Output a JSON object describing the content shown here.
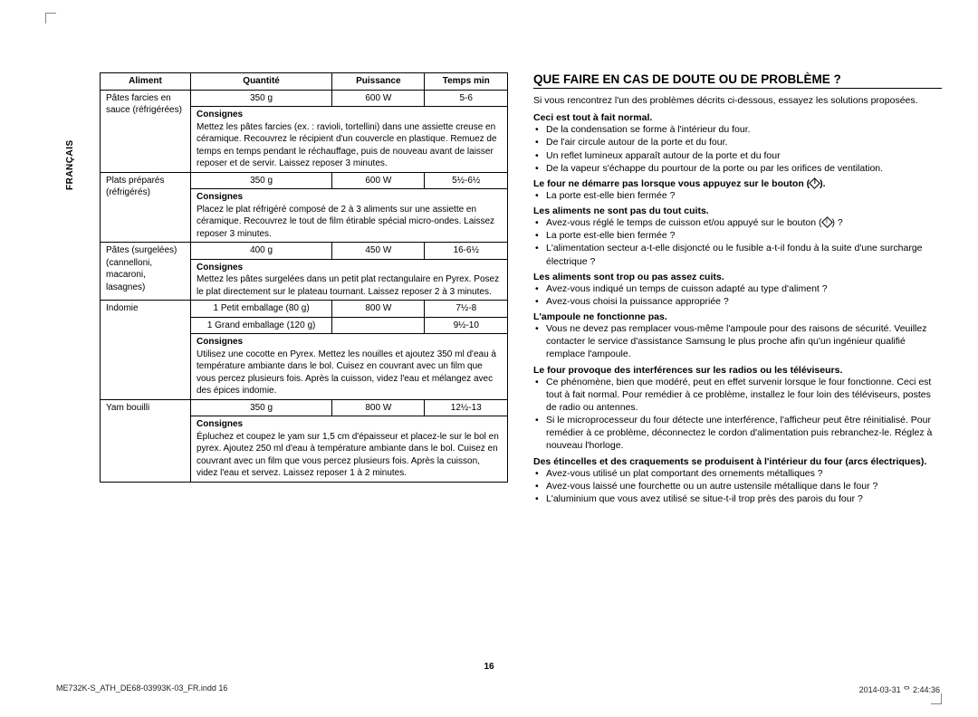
{
  "lang_label": "FRANÇAIS",
  "page_number": "16",
  "footer_left": "ME732K-S_ATH_DE68-03993K-03_FR.indd   16",
  "footer_right": "2014-03-31   ᄋ 2:44:36",
  "table": {
    "headers": [
      "Aliment",
      "Quantité",
      "Puissance",
      "Temps min"
    ],
    "rows": [
      {
        "food": "Pâtes farcies en sauce (réfrigérées)",
        "qty": "350 g",
        "power": "600 W",
        "time": "5-6",
        "consignes_label": "Consignes",
        "consignes": "Mettez les pâtes farcies (ex. : ravioli, tortellini) dans une assiette creuse en céramique. Recouvrez le récipient d'un couvercle en plastique. Remuez de temps en temps pendant le réchauffage, puis de nouveau avant de laisser reposer et de servir. Laissez reposer 3 minutes."
      },
      {
        "food": "Plats préparés (réfrigérés)",
        "qty": "350 g",
        "power": "600 W",
        "time": "5½-6½",
        "consignes_label": "Consignes",
        "consignes": "Placez le plat réfrigéré composé de 2 à 3 aliments sur une assiette en céramique. Recouvrez le tout de film étirable spécial micro-ondes. Laissez reposer 3 minutes."
      },
      {
        "food": "Pâtes (surgelées) (cannelloni, macaroni, lasagnes)",
        "qty": "400 g",
        "power": "450 W",
        "time": "16-6½",
        "consignes_label": "Consignes",
        "consignes": "Mettez les pâtes surgelées dans un petit plat rectangulaire en Pyrex. Posez le plat directement sur le plateau tournant. Laissez reposer 2 à 3 minutes."
      },
      {
        "food": "Indomie",
        "qty1": "1 Petit emballage (80 g)",
        "power1": "800 W",
        "time1": "7½-8",
        "qty2": "1 Grand emballage (120 g)",
        "time2": "9½-10",
        "consignes_label": "Consignes",
        "consignes": "Utilisez une cocotte en Pyrex. Mettez les nouilles et ajoutez 350 ml d'eau à température ambiante dans le bol. Cuisez en couvrant avec un film que vous percez plusieurs fois. Après la cuisson, videz l'eau et mélangez avec des épices indomie."
      },
      {
        "food": "Yam bouilli",
        "qty": "350 g",
        "power": "800 W",
        "time": "12½-13",
        "consignes_label": "Consignes",
        "consignes": "Épluchez et coupez le yam sur 1,5 cm d'épaisseur et placez-le sur le bol en pyrex. Ajoutez 250 ml d'eau à température ambiante dans le bol. Cuisez en couvrant avec un film que vous percez plusieurs fois. Après la cuisson, videz l'eau et servez. Laissez reposer 1 à 2 minutes."
      }
    ]
  },
  "right": {
    "heading": "QUE FAIRE EN CAS DE DOUTE OU DE PROBLÈME ?",
    "intro": "Si vous rencontrez l'un des problèmes décrits ci-dessous, essayez les solutions proposées.",
    "sections": [
      {
        "title": "Ceci est tout à fait normal.",
        "items": [
          "De la condensation se forme à l'intérieur du four.",
          "De l'air circule autour de la porte et du four.",
          "Un reflet lumineux apparaît autour de la porte et du four",
          "De la vapeur s'échappe du pourtour de la porte ou par les orifices de ventilation."
        ]
      },
      {
        "title": "Le four ne démarre pas lorsque vous appuyez sur le bouton (",
        "title_after": ").",
        "items": [
          "La porte est-elle bien fermée ?"
        ]
      },
      {
        "title": "Les aliments ne sont pas du tout cuits.",
        "items": [
          "Avez-vous réglé le temps de cuisson et/ou appuyé sur le bouton ( ) ?",
          "La porte est-elle bien fermée ?",
          "L'alimentation secteur a-t-elle disjoncté ou le fusible a-t-il fondu à la suite d'une surcharge électrique ?"
        ]
      },
      {
        "title": "Les aliments sont trop ou pas assez cuits.",
        "items": [
          "Avez-vous indiqué un temps de cuisson adapté au type d'aliment ?",
          "Avez-vous choisi la puissance appropriée ?"
        ]
      },
      {
        "title": "L'ampoule ne fonctionne pas.",
        "items": [
          "Vous ne devez pas remplacer vous-même l'ampoule pour des raisons de sécurité. Veuillez contacter le service d'assistance Samsung le plus proche afin qu'un ingénieur qualifié remplace l'ampoule."
        ]
      },
      {
        "title": "Le four provoque des interférences sur les radios ou les téléviseurs.",
        "items": [
          "Ce phénomène, bien que modéré, peut en effet survenir lorsque le four fonctionne. Ceci est tout à fait normal. Pour remédier à ce problème, installez le four loin des téléviseurs, postes de radio ou antennes.",
          "Si le microprocesseur du four détecte une interférence, l'afficheur peut être réinitialisé. Pour remédier à ce problème, déconnectez le cordon d'alimentation puis rebranchez-le. Réglez à nouveau l'horloge."
        ]
      },
      {
        "title": "Des étincelles et des craquements se produisent à l'intérieur du four (arcs électriques).",
        "items": [
          "Avez-vous utilisé un plat comportant des ornements métalliques ?",
          "Avez-vous laissé une fourchette ou un autre ustensile métallique dans le four ?",
          "L'aluminium que vous avez utilisé se situe-t-il trop près des parois du four ?"
        ]
      }
    ]
  }
}
